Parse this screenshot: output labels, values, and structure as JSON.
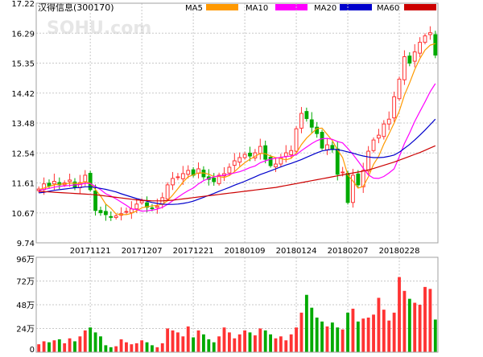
{
  "header": {
    "title": "汉得信息(300170)",
    "watermark": "SOHU.com"
  },
  "legend": [
    {
      "name": "MA5",
      "color": "#ff9900"
    },
    {
      "name": "MA10",
      "color": "#ff00ff"
    },
    {
      "name": "MA20",
      "color": "#0000cc"
    },
    {
      "name": "MA60",
      "color": "#cc0000"
    }
  ],
  "colors": {
    "up": "#ff3333",
    "down": "#00aa00",
    "grid": "#c8c8c8",
    "axis_text": "#000000"
  },
  "chart_data": [
    {
      "type": "candlestick",
      "title": "汉得信息(300170)",
      "ylim": [
        9.74,
        17.22
      ],
      "y_ticks": [
        "17.22",
        "16.29",
        "15.35",
        "14.42",
        "13.48",
        "12.54",
        "11.61",
        "10.67",
        "9.74"
      ],
      "x_ticks": [
        "20171121",
        "20171207",
        "20171221",
        "20180109",
        "20180124",
        "20180207",
        "20180228"
      ],
      "x_tick_days": [
        10,
        20,
        30,
        40,
        50,
        60,
        70
      ],
      "days": 78,
      "close": [
        11.42,
        11.58,
        11.52,
        11.66,
        11.55,
        11.61,
        11.7,
        11.48,
        11.62,
        11.85,
        11.4,
        10.75,
        10.68,
        10.62,
        10.55,
        10.58,
        10.65,
        10.72,
        10.8,
        10.95,
        11.05,
        10.85,
        10.82,
        10.88,
        11.15,
        11.55,
        11.75,
        11.8,
        11.9,
        12.0,
        11.85,
        12.05,
        11.8,
        11.72,
        11.65,
        11.85,
        11.9,
        12.1,
        12.3,
        12.4,
        12.5,
        12.45,
        12.55,
        12.75,
        12.35,
        12.15,
        12.2,
        12.4,
        12.55,
        12.62,
        13.3,
        13.78,
        13.62,
        13.35,
        13.15,
        12.7,
        12.8,
        12.65,
        11.88,
        11.95,
        11.0,
        11.85,
        11.55,
        12.0,
        12.6,
        12.95,
        13.1,
        13.45,
        13.6,
        14.3,
        14.85,
        15.55,
        15.35,
        15.7,
        16.0,
        16.2,
        16.3,
        15.6
      ],
      "ma_lines": [
        {
          "name": "MA5",
          "values": [
            11.4,
            11.45,
            11.5,
            11.55,
            11.57,
            11.58,
            11.6,
            11.6,
            11.59,
            11.65,
            11.6,
            11.4,
            11.2,
            10.95,
            10.82,
            10.64,
            10.62,
            10.62,
            10.66,
            10.74,
            10.83,
            10.87,
            10.89,
            10.91,
            10.95,
            11.05,
            11.23,
            11.43,
            11.63,
            11.8,
            11.86,
            11.92,
            11.92,
            11.88,
            11.81,
            11.81,
            11.78,
            11.84,
            11.96,
            12.11,
            12.24,
            12.35,
            12.44,
            12.53,
            12.52,
            12.45,
            12.4,
            12.37,
            12.33,
            12.38,
            12.54,
            12.81,
            13.01,
            13.16,
            13.31,
            13.32,
            13.12,
            12.93,
            12.64,
            12.4,
            11.86,
            11.67,
            11.45,
            11.5,
            11.8,
            12.19,
            12.44,
            12.82,
            13.14,
            13.48,
            13.85,
            14.35,
            14.73,
            15.15,
            15.49,
            15.76,
            15.91,
            15.96
          ]
        },
        {
          "name": "MA10",
          "values": [
            11.38,
            11.41,
            11.44,
            11.48,
            11.5,
            11.52,
            11.53,
            11.55,
            11.56,
            11.6,
            11.59,
            11.5,
            11.4,
            11.27,
            11.2,
            11.11,
            11.01,
            10.91,
            10.8,
            10.78,
            10.73,
            10.74,
            10.76,
            10.79,
            10.85,
            10.94,
            11.05,
            11.16,
            11.27,
            11.37,
            11.45,
            11.58,
            11.68,
            11.75,
            11.8,
            11.83,
            11.85,
            11.88,
            11.92,
            11.96,
            12.02,
            12.09,
            12.14,
            12.24,
            12.3,
            12.35,
            12.38,
            12.41,
            12.43,
            12.45,
            12.49,
            12.62,
            12.73,
            12.84,
            12.93,
            12.99,
            13.0,
            12.97,
            12.9,
            12.86,
            12.69,
            12.5,
            12.29,
            12.07,
            11.86,
            11.76,
            11.75,
            11.81,
            11.92,
            12.05,
            12.43,
            12.84,
            13.17,
            13.53,
            13.84,
            14.14,
            14.46,
            14.71
          ]
        },
        {
          "name": "MA20",
          "values": [
            11.3,
            11.32,
            11.35,
            11.38,
            11.4,
            11.42,
            11.44,
            11.46,
            11.47,
            11.49,
            11.49,
            11.47,
            11.44,
            11.41,
            11.37,
            11.33,
            11.27,
            11.22,
            11.17,
            11.12,
            11.08,
            11.04,
            11.0,
            10.97,
            10.95,
            10.94,
            10.94,
            10.95,
            10.97,
            11.0,
            11.04,
            11.1,
            11.16,
            11.22,
            11.28,
            11.35,
            11.41,
            11.47,
            11.54,
            11.6,
            11.66,
            11.73,
            11.8,
            11.87,
            11.93,
            11.99,
            12.05,
            12.11,
            12.17,
            12.22,
            12.28,
            12.34,
            12.41,
            12.48,
            12.55,
            12.61,
            12.64,
            12.66,
            12.65,
            12.62,
            12.58,
            12.54,
            12.49,
            12.45,
            12.42,
            12.4,
            12.4,
            12.41,
            12.44,
            12.48,
            12.57,
            12.69,
            12.81,
            12.95,
            13.1,
            13.26,
            13.43,
            13.6
          ]
        },
        {
          "name": "MA60",
          "values": [
            11.35,
            11.34,
            11.33,
            11.32,
            11.31,
            11.3,
            11.29,
            11.28,
            11.27,
            11.26,
            11.25,
            11.24,
            11.22,
            11.2,
            11.18,
            11.16,
            11.14,
            11.12,
            11.1,
            11.08,
            11.07,
            11.06,
            11.05,
            11.05,
            11.05,
            11.06,
            11.07,
            11.09,
            11.11,
            11.13,
            11.15,
            11.17,
            11.19,
            11.21,
            11.23,
            11.25,
            11.27,
            11.29,
            11.31,
            11.33,
            11.35,
            11.37,
            11.39,
            11.41,
            11.43,
            11.45,
            11.47,
            11.5,
            11.53,
            11.56,
            11.59,
            11.62,
            11.65,
            11.68,
            11.71,
            11.74,
            11.77,
            11.8,
            11.83,
            11.86,
            11.89,
            11.92,
            11.95,
            11.98,
            12.02,
            12.06,
            12.11,
            12.16,
            12.21,
            12.26,
            12.32,
            12.38,
            12.44,
            12.5,
            12.56,
            12.63,
            12.7,
            12.77
          ]
        }
      ]
    },
    {
      "type": "bar",
      "title": "",
      "ylim": [
        0,
        96
      ],
      "y_ticks": [
        "96万",
        "72万",
        "48万",
        "24万",
        "0"
      ],
      "y_tick_values": [
        96,
        72,
        48,
        24,
        0
      ],
      "unit": "万",
      "volume": [
        8,
        11,
        10,
        12,
        13,
        9,
        14,
        11,
        16,
        22,
        25,
        20,
        16,
        7,
        5,
        6,
        13,
        10,
        8,
        9,
        12,
        10,
        7,
        5,
        9,
        24,
        22,
        20,
        16,
        26,
        15,
        22,
        18,
        13,
        10,
        16,
        25,
        20,
        14,
        18,
        22,
        20,
        17,
        24,
        22,
        18,
        14,
        16,
        12,
        18,
        25,
        40,
        58,
        45,
        35,
        31,
        26,
        30,
        25,
        23,
        40,
        44,
        31,
        34,
        35,
        38,
        55,
        43,
        32,
        40,
        76,
        62,
        54,
        50,
        48,
        66,
        64,
        33
      ]
    }
  ]
}
